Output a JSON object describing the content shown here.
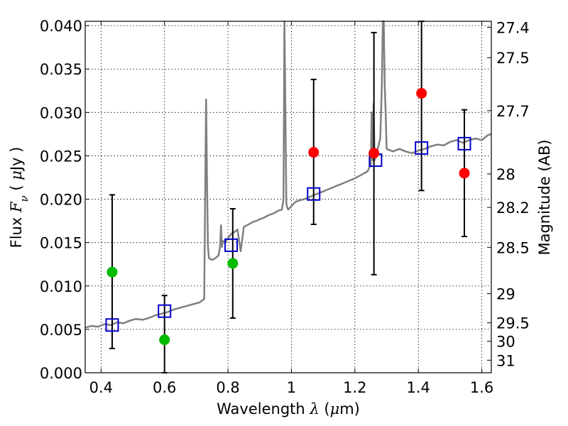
{
  "chart_data": {
    "type": "scatter",
    "xlabel": {
      "prefix": "Wavelength ",
      "symbol": "λ",
      "suffix": " (",
      "unit_mu": "μ",
      "unit": "m)"
    },
    "ylabel": {
      "prefix": "Flux ",
      "symbol": "F",
      "subscript": "ν",
      "suffix": " ( ",
      "unit_mu": "μ",
      "unit": "Jy )"
    },
    "y2label": "Magnitude (AB)",
    "xlim": [
      0.35,
      1.63
    ],
    "ylim": [
      0.0,
      0.0405
    ],
    "grid": true,
    "x_ticks": [
      {
        "value": 0.4,
        "label": "0.4"
      },
      {
        "value": 0.6,
        "label": "0.6"
      },
      {
        "value": 0.8,
        "label": "0.8"
      },
      {
        "value": 1.0,
        "label": "1"
      },
      {
        "value": 1.2,
        "label": "1.2"
      },
      {
        "value": 1.4,
        "label": "1.4"
      },
      {
        "value": 1.6,
        "label": "1.6"
      }
    ],
    "y_ticks": [
      {
        "value": 0.0,
        "label": "0.000"
      },
      {
        "value": 0.005,
        "label": "0.005"
      },
      {
        "value": 0.01,
        "label": "0.010"
      },
      {
        "value": 0.015,
        "label": "0.015"
      },
      {
        "value": 0.02,
        "label": "0.020"
      },
      {
        "value": 0.025,
        "label": "0.025"
      },
      {
        "value": 0.03,
        "label": "0.030"
      },
      {
        "value": 0.035,
        "label": "0.035"
      },
      {
        "value": 0.04,
        "label": "0.040"
      }
    ],
    "y2_ticks": [
      {
        "value": 27.4,
        "label": "27.4"
      },
      {
        "value": 27.5,
        "label": "27.5"
      },
      {
        "value": 27.7,
        "label": "27.7"
      },
      {
        "value": 28.0,
        "label": "28"
      },
      {
        "value": 28.2,
        "label": "28.2"
      },
      {
        "value": 28.5,
        "label": "28.5"
      },
      {
        "value": 29.0,
        "label": "29"
      },
      {
        "value": 29.5,
        "label": "29.5"
      },
      {
        "value": 30.0,
        "label": "30"
      },
      {
        "value": 31.0,
        "label": "31"
      }
    ],
    "sed_model": {
      "color": "#7f7f7f",
      "x": [
        0.35,
        0.37,
        0.39,
        0.41,
        0.43,
        0.45,
        0.47,
        0.49,
        0.51,
        0.53,
        0.55,
        0.57,
        0.59,
        0.61,
        0.63,
        0.65,
        0.67,
        0.69,
        0.71,
        0.725,
        0.728,
        0.731,
        0.734,
        0.737,
        0.74,
        0.75,
        0.76,
        0.77,
        0.775,
        0.778,
        0.781,
        0.784,
        0.79,
        0.8,
        0.81,
        0.82,
        0.83,
        0.84,
        0.85,
        0.86,
        0.87,
        0.88,
        0.89,
        0.9,
        0.91,
        0.92,
        0.93,
        0.94,
        0.95,
        0.96,
        0.97,
        0.975,
        0.978,
        0.981,
        0.984,
        0.987,
        0.99,
        1.0,
        1.01,
        1.02,
        1.04,
        1.06,
        1.08,
        1.1,
        1.12,
        1.14,
        1.16,
        1.18,
        1.2,
        1.22,
        1.24,
        1.25,
        1.253,
        1.256,
        1.259,
        1.262,
        1.27,
        1.28,
        1.285,
        1.288,
        1.291,
        1.294,
        1.297,
        1.3,
        1.32,
        1.34,
        1.36,
        1.38,
        1.4,
        1.42,
        1.44,
        1.46,
        1.48,
        1.5,
        1.52,
        1.54,
        1.56,
        1.58,
        1.6,
        1.62,
        1.63
      ],
      "y": [
        0.0052,
        0.0054,
        0.0053,
        0.0056,
        0.0055,
        0.0058,
        0.0057,
        0.006,
        0.0062,
        0.0061,
        0.0063,
        0.0066,
        0.0068,
        0.007,
        0.0073,
        0.0075,
        0.0077,
        0.0079,
        0.0081,
        0.0085,
        0.02,
        0.0315,
        0.022,
        0.0145,
        0.0132,
        0.013,
        0.0132,
        0.0135,
        0.0145,
        0.017,
        0.0145,
        0.0152,
        0.015,
        0.0155,
        0.016,
        0.0162,
        0.0165,
        0.014,
        0.0168,
        0.017,
        0.0172,
        0.0174,
        0.0175,
        0.0177,
        0.0178,
        0.018,
        0.0182,
        0.0183,
        0.0185,
        0.0187,
        0.0188,
        0.02,
        0.0405,
        0.03,
        0.0195,
        0.019,
        0.0188,
        0.0192,
        0.0196,
        0.0198,
        0.02,
        0.0203,
        0.0206,
        0.0209,
        0.0212,
        0.0215,
        0.0218,
        0.0221,
        0.0224,
        0.0228,
        0.0232,
        0.024,
        0.03,
        0.0245,
        0.031,
        0.0245,
        0.0255,
        0.027,
        0.033,
        0.0405,
        0.0405,
        0.033,
        0.03,
        0.0258,
        0.0255,
        0.0258,
        0.0255,
        0.0253,
        0.0256,
        0.0258,
        0.0261,
        0.0263,
        0.0262,
        0.0266,
        0.0268,
        0.0265,
        0.0268,
        0.027,
        0.0268,
        0.0274,
        0.0275
      ]
    },
    "series": [
      {
        "marker": "square",
        "color": "#0000cc",
        "points": [
          {
            "x": 0.435,
            "y": 0.0055
          },
          {
            "x": 0.6,
            "y": 0.0071
          },
          {
            "x": 0.81,
            "y": 0.0147
          },
          {
            "x": 1.07,
            "y": 0.0206
          },
          {
            "x": 1.265,
            "y": 0.0245
          },
          {
            "x": 1.41,
            "y": 0.0259
          },
          {
            "x": 1.545,
            "y": 0.0264
          }
        ]
      },
      {
        "marker": "circle",
        "color": "#ff0000",
        "points": [
          {
            "x": 1.07,
            "y": 0.0254,
            "err_low": 0.0171,
            "err_high": 0.0338
          },
          {
            "x": 1.26,
            "y": 0.0253,
            "err_low": 0.0113,
            "err_high": 0.0392
          },
          {
            "x": 1.41,
            "y": 0.0322,
            "err_low": 0.021,
            "err_high": 0.0405
          },
          {
            "x": 1.545,
            "y": 0.023,
            "err_low": 0.0157,
            "err_high": 0.0303
          }
        ]
      },
      {
        "marker": "circle",
        "color": "#00bb00",
        "points": [
          {
            "x": 0.435,
            "y": 0.0116,
            "err_low": 0.0028,
            "err_high": 0.0205
          },
          {
            "x": 0.6,
            "y": 0.0038,
            "err_low": 0.0,
            "err_high": 0.0089
          },
          {
            "x": 0.815,
            "y": 0.0126,
            "err_low": 0.0063,
            "err_high": 0.0189
          }
        ]
      }
    ]
  }
}
